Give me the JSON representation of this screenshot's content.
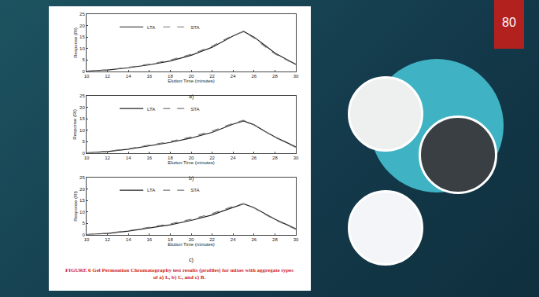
{
  "slide_number": "80",
  "caption": "FIGURE 6 Gel Permeation Chromatography test results (profiles) for mixes with aggregate types of a) L, b) C, and c) B.",
  "chart_data": [
    {
      "type": "line",
      "label": "a)",
      "xlabel": "Elution Time (minutes)",
      "ylabel": "Response (RI)",
      "x": [
        10,
        12,
        14,
        16,
        18,
        20,
        22,
        23,
        24,
        25,
        26,
        27,
        28,
        29,
        30
      ],
      "series": [
        {
          "name": "LTA",
          "color": "#222222",
          "line_style": "solid",
          "values": [
            0,
            0.5,
            1.5,
            2.8,
            4.5,
            7,
            10.5,
            13,
            15.5,
            17.5,
            15,
            11.5,
            8,
            5.5,
            3
          ]
        },
        {
          "name": "STA",
          "color": "#777777",
          "line_style": "dash",
          "values": [
            0,
            0.6,
            1.7,
            3.1,
            4.9,
            7.4,
            11,
            13.4,
            15.8,
            17.3,
            14.6,
            11,
            7.6,
            5.2,
            2.8
          ]
        }
      ],
      "xlim": [
        10,
        30
      ],
      "xticks": [
        10,
        12,
        14,
        16,
        18,
        20,
        22,
        24,
        26,
        28,
        30
      ],
      "ylim": [
        0,
        25
      ],
      "yticks": [
        0,
        5,
        10,
        15,
        20,
        25
      ],
      "grid": false,
      "legend": "top"
    },
    {
      "type": "line",
      "label": "b)",
      "xlabel": "Elution Time (minutes)",
      "ylabel": "Response (RI)",
      "x": [
        10,
        12,
        14,
        16,
        18,
        20,
        22,
        23,
        24,
        25,
        26,
        27,
        28,
        29,
        30
      ],
      "series": [
        {
          "name": "LTA",
          "color": "#222222",
          "line_style": "solid",
          "values": [
            0,
            0.6,
            1.6,
            3,
            4.6,
            6.5,
            9,
            10.8,
            12.6,
            14,
            12.3,
            9.6,
            7,
            4.8,
            2.6
          ]
        },
        {
          "name": "STA",
          "color": "#777777",
          "line_style": "dash",
          "values": [
            0,
            0.7,
            1.8,
            3.3,
            5,
            7,
            9.6,
            11.3,
            13,
            14.3,
            12.4,
            9.5,
            6.8,
            4.6,
            2.4
          ]
        }
      ],
      "xlim": [
        10,
        30
      ],
      "xticks": [
        10,
        12,
        14,
        16,
        18,
        20,
        22,
        24,
        26,
        28,
        30
      ],
      "ylim": [
        0,
        25
      ],
      "yticks": [
        0,
        5,
        10,
        15,
        20,
        25
      ],
      "grid": false,
      "legend": "top"
    },
    {
      "type": "line",
      "label": "c)",
      "xlabel": "Elution Time (minutes)",
      "ylabel": "Response (RI)",
      "x": [
        10,
        12,
        14,
        16,
        18,
        20,
        22,
        23,
        24,
        25,
        26,
        27,
        28,
        29,
        30
      ],
      "series": [
        {
          "name": "LTA",
          "color": "#222222",
          "line_style": "solid",
          "values": [
            0,
            0.5,
            1.5,
            2.8,
            4.3,
            6.2,
            8.6,
            10.3,
            12,
            13.5,
            11.8,
            9.2,
            6.7,
            4.6,
            2.5
          ]
        },
        {
          "name": "STA",
          "color": "#777777",
          "line_style": "dash",
          "values": [
            0,
            0.6,
            1.7,
            3.1,
            4.7,
            6.7,
            9.2,
            10.8,
            12.4,
            13.6,
            11.7,
            9,
            6.5,
            4.4,
            2.3
          ]
        }
      ],
      "xlim": [
        10,
        30
      ],
      "xticks": [
        10,
        12,
        14,
        16,
        18,
        20,
        22,
        24,
        26,
        28,
        30
      ],
      "ylim": [
        0,
        25
      ],
      "yticks": [
        0,
        5,
        10,
        15,
        20,
        25
      ],
      "grid": false,
      "legend": "top"
    }
  ]
}
